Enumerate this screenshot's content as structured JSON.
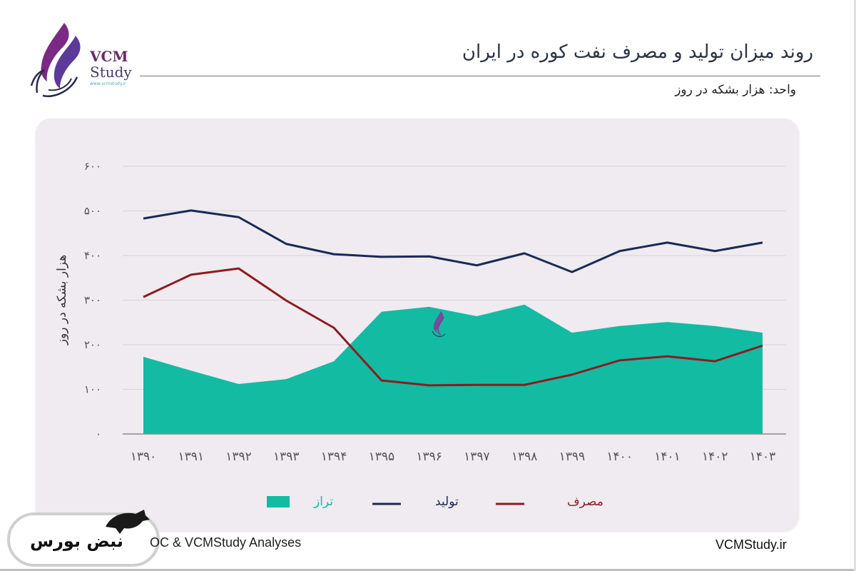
{
  "header": {
    "title": "روند میزان تولید و مصرف نفت کوره در ایران",
    "unit": "واحد: هزار بشکه در روز"
  },
  "logo": {
    "name_line1": "VCM",
    "name_line2": "Study",
    "url": "www.vcmstudy.ir",
    "icon": "flame-logo-icon"
  },
  "footer": {
    "source": "OC & VCMStudy Analyses",
    "website": "VCMStudy.ir",
    "badge_text": "نبض بورس",
    "badge_icon": "bull-icon"
  },
  "colors": {
    "production": "#1a2a57",
    "consumption": "#8e1a1f",
    "balance": "#13bba3",
    "panel": "#efebf0"
  },
  "chart_data": {
    "type": "line",
    "title": "روند میزان تولید و مصرف نفت کوره در ایران",
    "xlabel": "",
    "ylabel": "هزار بشکه در روز",
    "ylim": [
      0,
      600
    ],
    "yticks": [
      0,
      100,
      200,
      300,
      400,
      500,
      600
    ],
    "ytick_labels": [
      "۰",
      "۱۰۰",
      "۲۰۰",
      "۳۰۰",
      "۴۰۰",
      "۵۰۰",
      "۶۰۰"
    ],
    "grid": true,
    "legend_position": "bottom",
    "categories": [
      "۱۳۹۰",
      "۱۳۹۱",
      "۱۳۹۲",
      "۱۳۹۳",
      "۱۳۹۴",
      "۱۳۹۵",
      "۱۳۹۶",
      "۱۳۹۷",
      "۱۳۹۸",
      "۱۳۹۹",
      "۱۴۰۰",
      "۱۴۰۱",
      "۱۴۰۲",
      "۱۴۰۳"
    ],
    "series": [
      {
        "name": "تراز",
        "type": "area",
        "color": "#13bba3",
        "values": [
          173,
          142,
          112,
          123,
          163,
          274,
          285,
          264,
          290,
          227,
          242,
          251,
          242,
          227
        ]
      },
      {
        "name": "تولید",
        "type": "line",
        "color": "#1a2a57",
        "values": [
          483,
          501,
          486,
          426,
          403,
          397,
          398,
          378,
          405,
          363,
          410,
          429,
          410,
          429
        ]
      },
      {
        "name": "مصرف",
        "type": "line",
        "color": "#8e1a1f",
        "values": [
          307,
          357,
          371,
          299,
          238,
          120,
          109,
          110,
          110,
          133,
          165,
          174,
          163,
          198
        ]
      }
    ]
  }
}
